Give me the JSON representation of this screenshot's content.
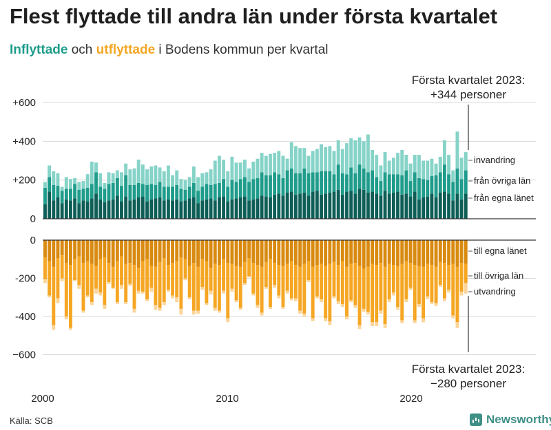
{
  "title": "Flest flyttade till andra län under första kvartalet",
  "subtitle": {
    "in": "Inflyttade",
    "mid": " och ",
    "out": "utflyttade",
    "rest": " i Bodens kommun per kvartal"
  },
  "annotation_top": {
    "line1": "Första kvartalet 2023:",
    "line2": "+344 personer"
  },
  "annotation_bottom": {
    "line1": "Första kvartalet 2023:",
    "line2": "−280 personer"
  },
  "source": "Källa: SCB",
  "brand": "Newsworthy",
  "colors": {
    "in_egna": "#0e5e57",
    "in_ovriga": "#1f9c8b",
    "in_invandring": "#86d3c8",
    "out_egna": "#d98a10",
    "out_ovriga": "#f5a623",
    "out_utvandring": "#fbd59a",
    "grid": "#d8d8d8",
    "axis": "#333333"
  },
  "chart_data": {
    "type": "bar",
    "x_ticks": [
      "2000",
      "2010",
      "2020"
    ],
    "top": {
      "yticks": [
        "+600",
        "+400",
        "+200",
        "0"
      ],
      "ylim": [
        0,
        600
      ],
      "series_labels": [
        "invandring",
        "från övriga län",
        "från egna länet"
      ],
      "series": [
        {
          "name": "från egna länet",
          "values": [
            75,
            140,
            95,
            110,
            80,
            100,
            95,
            105,
            80,
            95,
            90,
            105,
            130,
            100,
            85,
            95,
            100,
            120,
            90,
            115,
            95,
            100,
            110,
            115,
            90,
            100,
            105,
            110,
            95,
            100,
            95,
            100,
            90,
            95,
            105,
            110,
            80,
            95,
            100,
            105,
            95,
            110,
            115,
            90,
            100,
            105,
            110,
            115,
            95,
            100,
            105,
            120,
            115,
            110,
            125,
            130,
            120,
            135,
            140,
            125,
            130,
            135,
            120,
            140,
            145,
            125,
            130,
            135,
            140,
            150,
            125,
            140,
            145,
            130,
            155,
            150,
            135,
            140,
            130,
            120,
            145,
            130,
            135,
            140,
            125,
            130,
            115,
            140,
            100,
            110,
            115,
            130,
            110,
            135,
            140,
            130,
            95,
            130,
            100,
            130
          ]
        },
        {
          "name": "från övriga län",
          "values": [
            85,
            75,
            80,
            60,
            65,
            55,
            60,
            75,
            70,
            60,
            70,
            75,
            110,
            65,
            70,
            85,
            85,
            90,
            80,
            110,
            80,
            75,
            75,
            65,
            85,
            80,
            70,
            80,
            70,
            65,
            70,
            75,
            65,
            55,
            60,
            75,
            65,
            70,
            80,
            70,
            85,
            75,
            90,
            75,
            100,
            85,
            95,
            100,
            95,
            105,
            105,
            120,
            110,
            115,
            115,
            100,
            90,
            115,
            120,
            110,
            105,
            125,
            115,
            100,
            95,
            120,
            115,
            110,
            90,
            130,
            110,
            90,
            120,
            105,
            125,
            110,
            105,
            110,
            85,
            75,
            95,
            100,
            95,
            90,
            100,
            120,
            80,
            100,
            110,
            95,
            85,
            90,
            115,
            105,
            140,
            100,
            95,
            130,
            105,
            120
          ]
        },
        {
          "name": "invandring",
          "values": [
            30,
            60,
            70,
            65,
            20,
            60,
            50,
            30,
            40,
            40,
            70,
            115,
            50,
            70,
            30,
            60,
            50,
            40,
            70,
            60,
            80,
            85,
            120,
            100,
            80,
            90,
            100,
            75,
            80,
            110,
            60,
            75,
            50,
            50,
            50,
            85,
            70,
            70,
            60,
            80,
            120,
            140,
            100,
            80,
            120,
            100,
            85,
            90,
            70,
            90,
            100,
            100,
            100,
            110,
            100,
            120,
            115,
            60,
            135,
            140,
            130,
            105,
            90,
            110,
            120,
            140,
            125,
            130,
            120,
            125,
            125,
            160,
            150,
            170,
            140,
            140,
            195,
            105,
            115,
            80,
            105,
            70,
            85,
            110,
            130,
            80,
            90,
            90,
            120,
            95,
            100,
            90,
            60,
            80,
            125,
            100,
            60,
            190,
            110,
            94
          ]
        }
      ]
    },
    "bottom": {
      "yticks": [
        "0",
        "-200",
        "-400",
        "−600"
      ],
      "ylim": [
        -600,
        0
      ],
      "series_labels": [
        "till egna länet",
        "till övriga län",
        "utvandring"
      ],
      "series": [
        {
          "name": "till egna länet",
          "values": [
            90,
            110,
            140,
            95,
            80,
            120,
            130,
            100,
            85,
            120,
            110,
            125,
            135,
            100,
            90,
            120,
            140,
            110,
            85,
            125,
            120,
            130,
            145,
            110,
            100,
            135,
            140,
            115,
            95,
            130,
            120,
            110,
            90,
            100,
            135,
            120,
            140,
            100,
            110,
            145,
            125,
            130,
            100,
            120,
            125,
            135,
            140,
            115,
            95,
            120,
            130,
            140,
            115,
            100,
            120,
            130,
            135,
            125,
            110,
            130,
            140,
            125,
            110,
            140,
            130,
            125,
            135,
            125,
            115,
            130,
            110,
            140,
            125,
            120,
            135,
            150,
            140,
            125,
            130,
            120,
            140,
            125,
            130,
            135,
            125,
            110,
            120,
            130,
            135,
            140,
            125,
            130,
            140,
            115,
            120,
            130,
            125,
            140,
            120,
            125
          ]
        },
        {
          "name": "till övriga län",
          "values": [
            115,
            180,
            305,
            210,
            120,
            280,
            330,
            110,
            150,
            250,
            180,
            200,
            120,
            175,
            250,
            100,
            110,
            215,
            150,
            200,
            110,
            230,
            120,
            160,
            210,
            115,
            200,
            240,
            230,
            130,
            170,
            190,
            270,
            100,
            165,
            250,
            230,
            145,
            220,
            120,
            230,
            240,
            165,
            290,
            130,
            180,
            215,
            110,
            95,
            160,
            210,
            240,
            130,
            250,
            115,
            160,
            215,
            140,
            195,
            175,
            230,
            260,
            100,
            270,
            165,
            185,
            275,
            300,
            180,
            190,
            225,
            260,
            190,
            220,
            310,
            210,
            235,
            305,
            300,
            250,
            300,
            185,
            145,
            215,
            295,
            200,
            130,
            290,
            200,
            270,
            170,
            195,
            190,
            120,
            185,
            130,
            270,
            290,
            150,
            100
          ]
        },
        {
          "name": "utvandring",
          "values": [
            20,
            10,
            25,
            25,
            15,
            15,
            10,
            5,
            20,
            10,
            10,
            15,
            25,
            15,
            20,
            10,
            5,
            10,
            20,
            10,
            10,
            20,
            15,
            10,
            10,
            20,
            25,
            15,
            15,
            10,
            15,
            25,
            30,
            10,
            10,
            20,
            15,
            15,
            10,
            20,
            15,
            10,
            15,
            20,
            15,
            10,
            10,
            10,
            5,
            10,
            15,
            15,
            10,
            10,
            15,
            15,
            10,
            15,
            10,
            15,
            15,
            15,
            10,
            15,
            10,
            15,
            15,
            20,
            10,
            15,
            15,
            15,
            10,
            15,
            20,
            15,
            15,
            20,
            20,
            15,
            20,
            15,
            15,
            15,
            15,
            15,
            10,
            15,
            15,
            20,
            15,
            10,
            15,
            10,
            15,
            15,
            15,
            30,
            20,
            55
          ]
        }
      ]
    }
  }
}
